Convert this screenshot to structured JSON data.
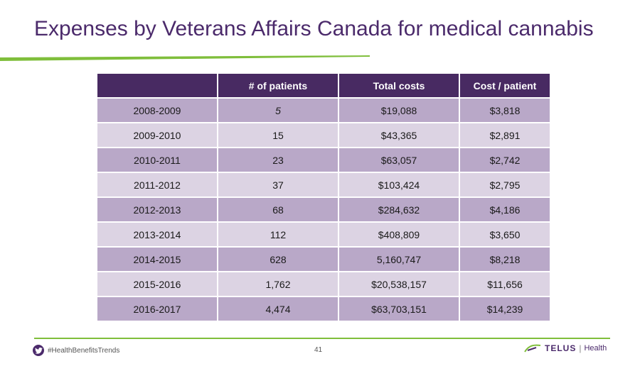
{
  "title": "Expenses by Veterans Affairs Canada for medical cannabis",
  "table": {
    "headers": [
      "",
      "# of patients",
      "Total costs",
      "Cost / patient"
    ],
    "rows": [
      [
        "2008-2009",
        "5",
        "$19,088",
        "$3,818"
      ],
      [
        "2009-2010",
        "15",
        "$43,365",
        "$2,891"
      ],
      [
        "2010-2011",
        "23",
        "$63,057",
        "$2,742"
      ],
      [
        "2011-2012",
        "37",
        "$103,424",
        "$2,795"
      ],
      [
        "2012-2013",
        "68",
        "$284,632",
        "$4,186"
      ],
      [
        "2013-2014",
        "112",
        "$408,809",
        "$3,650"
      ],
      [
        "2014-2015",
        "628",
        "5,160,747",
        "$8,218"
      ],
      [
        "2015-2016",
        "1,762",
        "$20,538,157",
        "$11,656"
      ],
      [
        "2016-2017",
        "4,474",
        "$63,703,151",
        "$14,239"
      ]
    ]
  },
  "footer": {
    "hashtag": "#HealthBenefitsTrends",
    "page_number": "41",
    "brand": "TELUS",
    "brand_suffix": "Health",
    "twitter_icon": "twitter-bird-icon",
    "logo_icon": "telus-logo-icon"
  },
  "colors": {
    "title": "#4b2a6b",
    "header_bg": "#482a62",
    "row_dark": "#b9a8c8",
    "row_light": "#dcd3e3",
    "accent_green": "#7fbe3b"
  }
}
